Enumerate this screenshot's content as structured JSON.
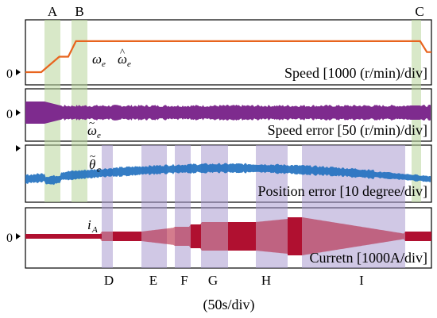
{
  "chart_data": [
    {
      "type": "line",
      "panel": "speed",
      "label": "Speed [1000 (r/min)/div]",
      "zero_label": "0",
      "legend": [
        {
          "symbol": "ω_e",
          "color": "#1f9bd7"
        },
        {
          "symbol": "ω̂_e",
          "color": "#e8641e"
        }
      ],
      "series": [
        {
          "color": "#e8641e",
          "x_divs": [
            0.0,
            0.35,
            0.75,
            0.95,
            1.12,
            1.5,
            8.75,
            8.9,
            9.0
          ],
          "y_divs": [
            0.0,
            0.0,
            0.85,
            0.85,
            1.7,
            1.7,
            1.7,
            1.1,
            1.1
          ]
        }
      ]
    },
    {
      "type": "line",
      "panel": "speed-error",
      "label": "Speed error [50 (r/min)/div]",
      "zero_label": "0",
      "legend": [
        {
          "symbol": "ω̃_e",
          "color": "#7e2b8e"
        }
      ],
      "series": [
        {
          "color": "#7e2b8e",
          "envelope_divs": 0.35
        }
      ]
    },
    {
      "type": "line",
      "panel": "position-error",
      "label": "Position error [10 degree/div]",
      "zero_label": "0",
      "legend": [
        {
          "symbol": "θ̃_e",
          "color": "#1f9bd7"
        }
      ],
      "series": [
        {
          "color": "#1f6fbf",
          "shape": "slow arc, noisy band"
        }
      ]
    },
    {
      "type": "line",
      "panel": "current",
      "label": "Curretn [1000A/div]",
      "zero_label": "0",
      "legend": [
        {
          "symbol": "i_A",
          "color": "#8b4513"
        }
      ],
      "series": [
        {
          "color": "#b01030",
          "shape": "sinusoidal band with stepped amplitude"
        }
      ]
    }
  ],
  "time_scale": "(50s/div)",
  "markers_top": [
    "A",
    "B",
    "C"
  ],
  "markers_bottom": [
    "D",
    "E",
    "F",
    "G",
    "H",
    "I"
  ],
  "colors": {
    "accent_orange": "#e8641e",
    "omega_blue": "#1f9bd7",
    "purple": "#7e2b8e",
    "position_blue": "#1f6fbf",
    "current_red": "#b01030",
    "band_green": "#b8d59a",
    "band_lilac": "#a99bcf"
  }
}
